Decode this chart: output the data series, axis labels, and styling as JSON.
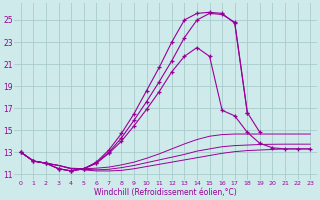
{
  "xlabel": "Windchill (Refroidissement éolien,°C)",
  "background_color": "#ceeaea",
  "grid_color": "#aacccc",
  "line_color": "#990099",
  "x_ticks": [
    0,
    1,
    2,
    3,
    4,
    5,
    6,
    7,
    8,
    9,
    10,
    11,
    12,
    13,
    14,
    15,
    16,
    17,
    18,
    19,
    20,
    21,
    22,
    23
  ],
  "y_ticks": [
    11,
    13,
    15,
    17,
    19,
    21,
    23,
    25
  ],
  "xlim": [
    -0.5,
    23.5
  ],
  "ylim": [
    10.5,
    26.5
  ],
  "curves": [
    {
      "x": [
        0,
        1,
        2,
        3,
        4,
        5,
        6,
        7,
        8,
        9,
        10,
        11,
        12,
        13,
        14,
        15,
        16,
        17,
        18,
        19,
        20,
        21,
        22,
        23
      ],
      "y": [
        13.0,
        12.2,
        12.0,
        11.8,
        11.5,
        11.4,
        11.3,
        11.3,
        11.35,
        11.5,
        11.7,
        11.9,
        12.1,
        12.3,
        12.5,
        12.7,
        12.9,
        13.05,
        13.15,
        13.2,
        13.25,
        13.3,
        13.3,
        13.3
      ],
      "marker": false,
      "linestyle": "solid"
    },
    {
      "x": [
        0,
        1,
        2,
        3,
        4,
        5,
        6,
        7,
        8,
        9,
        10,
        11,
        12,
        13,
        14,
        15,
        16,
        17,
        18,
        19,
        20,
        21,
        22,
        23
      ],
      "y": [
        13.0,
        12.2,
        12.0,
        11.8,
        11.5,
        11.45,
        11.4,
        11.45,
        11.6,
        11.8,
        12.05,
        12.3,
        12.55,
        12.8,
        13.1,
        13.3,
        13.5,
        13.6,
        13.65,
        13.7,
        13.72,
        13.73,
        13.73,
        13.73
      ],
      "marker": false,
      "linestyle": "solid"
    },
    {
      "x": [
        0,
        1,
        2,
        3,
        4,
        5,
        6,
        7,
        8,
        9,
        10,
        11,
        12,
        13,
        14,
        15,
        16,
        17,
        18,
        19,
        20,
        21,
        22,
        23
      ],
      "y": [
        13.0,
        12.2,
        12.0,
        11.8,
        11.55,
        11.5,
        11.55,
        11.65,
        11.85,
        12.1,
        12.45,
        12.85,
        13.3,
        13.75,
        14.15,
        14.45,
        14.6,
        14.65,
        14.65,
        14.65,
        14.65,
        14.65,
        14.65,
        14.65
      ],
      "marker": false,
      "linestyle": "solid"
    },
    {
      "x": [
        0,
        1,
        2,
        3,
        4,
        5,
        6,
        7,
        8,
        9,
        10,
        11,
        12,
        13,
        14,
        15,
        16,
        17,
        18,
        19,
        20,
        21,
        22,
        23
      ],
      "y": [
        13.0,
        12.2,
        12.0,
        11.5,
        11.3,
        11.5,
        12.0,
        12.9,
        14.0,
        15.4,
        16.9,
        18.5,
        20.3,
        21.7,
        22.5,
        21.7,
        16.8,
        16.3,
        14.8,
        13.8,
        13.4,
        13.3,
        13.3,
        13.3
      ],
      "marker": true,
      "linestyle": "solid"
    },
    {
      "x": [
        0,
        1,
        2,
        3,
        4,
        5,
        6,
        7,
        8,
        9,
        10,
        11,
        12,
        13,
        14,
        15,
        16,
        17,
        18
      ],
      "y": [
        13.0,
        12.2,
        12.0,
        11.5,
        11.3,
        11.5,
        12.1,
        13.2,
        14.7,
        16.5,
        18.6,
        20.7,
        23.0,
        25.0,
        25.6,
        25.7,
        25.6,
        24.7,
        16.6
      ],
      "marker": true,
      "linestyle": "solid"
    },
    {
      "x": [
        0,
        1,
        2,
        3,
        4,
        5,
        6,
        7,
        8,
        9,
        10,
        11,
        12,
        13,
        14,
        15,
        16,
        17,
        18,
        19,
        20,
        21,
        22,
        23
      ],
      "y": [
        13.0,
        12.2,
        12.0,
        11.5,
        11.3,
        11.5,
        12.0,
        13.0,
        14.3,
        15.9,
        17.6,
        19.4,
        21.3,
        23.4,
        25.0,
        25.6,
        25.5,
        24.8,
        16.6,
        14.8,
        null,
        null,
        null,
        null
      ],
      "marker": true,
      "linestyle": "solid"
    }
  ]
}
